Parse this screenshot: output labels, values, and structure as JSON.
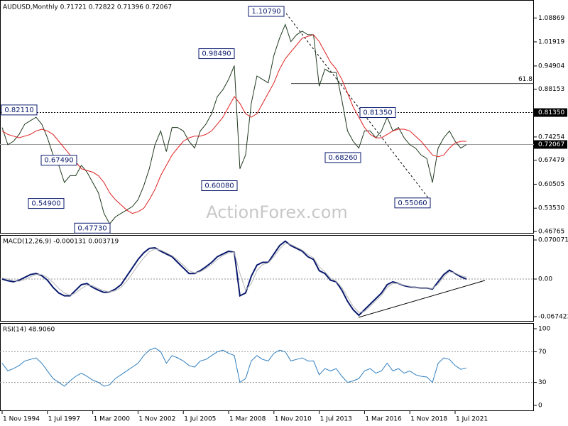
{
  "chart_data": [
    {
      "type": "line",
      "title": "AUDUSD,Monthly  0.71721 0.72822 0.71396 0.72067",
      "watermark": "ActionForex.com",
      "ylim": [
        0.46347,
        1.1389
      ],
      "yticks": [
        1.08869,
        1.01919,
        0.94904,
        0.88153,
        0.74254,
        0.67479,
        0.60505,
        {
          "value": 0.5353,
          "label": "0.53530"
        },
        0.46765
      ],
      "series": [
        {
          "color": "#1f3a1f",
          "values": [
            0.77,
            0.72,
            0.73,
            0.75,
            0.78,
            0.79,
            0.8,
            0.78,
            0.74,
            0.69,
            0.66,
            0.61,
            0.63,
            0.63,
            0.66,
            0.64,
            0.61,
            0.58,
            0.52,
            0.49,
            0.51,
            0.52,
            0.53,
            0.54,
            0.56,
            0.6,
            0.65,
            0.72,
            0.76,
            0.7,
            0.77,
            0.77,
            0.76,
            0.73,
            0.71,
            0.76,
            0.78,
            0.81,
            0.86,
            0.88,
            0.91,
            0.95,
            0.65,
            0.69,
            0.84,
            0.92,
            0.91,
            0.9,
            0.98,
            1.03,
            1.07,
            1.02,
            1.04,
            1.05,
            1.04,
            1.04,
            0.89,
            0.94,
            0.93,
            0.93,
            0.85,
            0.76,
            0.73,
            0.71,
            0.76,
            0.76,
            0.74,
            0.76,
            0.8,
            0.76,
            0.77,
            0.74,
            0.72,
            0.71,
            0.69,
            0.68,
            0.61,
            0.71,
            0.74,
            0.76,
            0.73,
            0.71,
            0.72
          ]
        },
        {
          "color": "#e02020",
          "values": [
            0.76,
            0.75,
            0.745,
            0.74,
            0.745,
            0.75,
            0.76,
            0.765,
            0.76,
            0.75,
            0.73,
            0.71,
            0.69,
            0.67,
            0.65,
            0.645,
            0.64,
            0.63,
            0.61,
            0.58,
            0.56,
            0.545,
            0.53,
            0.52,
            0.525,
            0.535,
            0.56,
            0.59,
            0.63,
            0.66,
            0.69,
            0.71,
            0.73,
            0.74,
            0.745,
            0.745,
            0.75,
            0.76,
            0.78,
            0.8,
            0.83,
            0.86,
            0.84,
            0.81,
            0.8,
            0.81,
            0.84,
            0.87,
            0.9,
            0.94,
            0.97,
            0.99,
            1.01,
            1.03,
            1.035,
            1.04,
            1.02,
            0.99,
            0.96,
            0.94,
            0.91,
            0.87,
            0.83,
            0.8,
            0.77,
            0.75,
            0.74,
            0.74,
            0.75,
            0.76,
            0.765,
            0.765,
            0.76,
            0.745,
            0.73,
            0.71,
            0.69,
            0.685,
            0.69,
            0.71,
            0.725,
            0.73,
            0.73
          ]
        }
      ],
      "levels": [
        {
          "value": 0.8135,
          "label": "0.81350"
        },
        {
          "value": 0.72067,
          "label": "0.72067"
        },
        {
          "value": 0.898,
          "label": "61.8"
        }
      ],
      "annotations": [
        {
          "value": 1.1079,
          "label": "1.10790"
        },
        {
          "value": 0.9849,
          "label": "0.98490"
        },
        {
          "value": 0.8211,
          "label": "0.82110"
        },
        {
          "value": 0.8135,
          "label": "0.81350"
        },
        {
          "value": 0.6826,
          "label": "0.68260"
        },
        {
          "value": 0.6749,
          "label": "0.67490"
        },
        {
          "value": 0.6008,
          "label": "0.60080"
        },
        {
          "value": 0.549,
          "label": "0.54900"
        },
        {
          "value": 0.4773,
          "label": "0.47730"
        },
        {
          "value": 0.5506,
          "label": "0.55060"
        }
      ]
    },
    {
      "type": "line",
      "title": "MACD(12,26,9) -0.000131 0.003719",
      "ylim": [
        -0.0751,
        0.0777
      ],
      "yticks": [
        0.070071,
        {
          "value": 0,
          "label": "0.00"
        },
        -0.067423
      ],
      "levels": [
        0
      ],
      "series": [
        {
          "color": "#0a1a6e",
          "values": [
            0,
            -0.003,
            -0.005,
            -0.002,
            0.003,
            0.008,
            0.01,
            0.006,
            -0.002,
            -0.015,
            -0.025,
            -0.03,
            -0.03,
            -0.02,
            -0.01,
            -0.008,
            -0.015,
            -0.02,
            -0.024,
            -0.023,
            -0.018,
            -0.01,
            0.005,
            0.02,
            0.035,
            0.047,
            0.055,
            0.056,
            0.05,
            0.045,
            0.04,
            0.03,
            0.02,
            0.01,
            0.01,
            0.015,
            0.022,
            0.03,
            0.04,
            0.045,
            0.05,
            0.048,
            -0.03,
            -0.025,
            0.005,
            0.025,
            0.03,
            0.03,
            0.045,
            0.06,
            0.068,
            0.06,
            0.055,
            0.05,
            0.04,
            0.035,
            0.015,
            0.01,
            -0.002,
            -0.005,
            -0.02,
            -0.04,
            -0.055,
            -0.065,
            -0.055,
            -0.045,
            -0.035,
            -0.025,
            -0.01,
            -0.005,
            -0.008,
            -0.012,
            -0.014,
            -0.015,
            -0.016,
            -0.016,
            -0.018,
            -0.005,
            0.008,
            0.016,
            0.01,
            0.004,
            -0.000131
          ]
        },
        {
          "color": "#b8b8b8",
          "values": [
            0.002,
            0,
            -0.003,
            -0.004,
            -0.001,
            0.004,
            0.008,
            0.008,
            0.003,
            -0.006,
            -0.017,
            -0.025,
            -0.029,
            -0.025,
            -0.017,
            -0.011,
            -0.012,
            -0.017,
            -0.021,
            -0.023,
            -0.021,
            -0.015,
            -0.004,
            0.01,
            0.025,
            0.038,
            0.049,
            0.054,
            0.052,
            0.047,
            0.042,
            0.034,
            0.025,
            0.015,
            0.011,
            0.013,
            0.019,
            0.026,
            0.035,
            0.042,
            0.047,
            0.048,
            0.01,
            -0.02,
            -0.008,
            0.015,
            0.026,
            0.029,
            0.04,
            0.054,
            0.064,
            0.062,
            0.057,
            0.052,
            0.044,
            0.038,
            0.022,
            0.013,
            0.002,
            -0.004,
            -0.015,
            -0.032,
            -0.049,
            -0.06,
            -0.058,
            -0.049,
            -0.039,
            -0.029,
            -0.015,
            -0.008,
            -0.008,
            -0.011,
            -0.013,
            -0.015,
            -0.016,
            -0.016,
            -0.017,
            -0.009,
            0.004,
            0.013,
            0.011,
            0.006,
            0.003719
          ]
        }
      ]
    },
    {
      "type": "line",
      "title": "RSI(14) 48.9060",
      "ylim": [
        -6.5,
        106.5
      ],
      "yticks": [
        100,
        70,
        30,
        0
      ],
      "levels": [
        30,
        70
      ],
      "categories": [
        "1 Nov 1994",
        null,
        null,
        null,
        null,
        null,
        null,
        null,
        "1 Jul 1997",
        null,
        null,
        null,
        null,
        null,
        null,
        null,
        "1 Mar 2000",
        null,
        null,
        null,
        null,
        null,
        null,
        null,
        "1 Nov 2002",
        null,
        null,
        null,
        null,
        null,
        null,
        null,
        "1 Jul 2005",
        null,
        null,
        null,
        null,
        null,
        null,
        null,
        "1 Mar 2008",
        null,
        null,
        null,
        null,
        null,
        null,
        null,
        "1 Nov 2010",
        null,
        null,
        null,
        null,
        null,
        null,
        null,
        "1 Jul 2013",
        null,
        null,
        null,
        null,
        null,
        null,
        null,
        "1 Mar 2016",
        null,
        null,
        null,
        null,
        null,
        null,
        null,
        "1 Nov 2018",
        null,
        null,
        null,
        null,
        null,
        null,
        null,
        "1 Jul 2021",
        null,
        null
      ],
      "series": [
        {
          "color": "#2f7fc0",
          "values": [
            55,
            45,
            48,
            52,
            58,
            60,
            62,
            55,
            45,
            35,
            30,
            25,
            32,
            38,
            42,
            38,
            33,
            30,
            25,
            27,
            35,
            40,
            45,
            50,
            55,
            65,
            72,
            75,
            70,
            55,
            65,
            62,
            58,
            52,
            50,
            58,
            60,
            65,
            70,
            72,
            68,
            65,
            30,
            35,
            58,
            65,
            60,
            58,
            68,
            72,
            70,
            58,
            60,
            62,
            58,
            58,
            40,
            48,
            45,
            48,
            38,
            30,
            32,
            35,
            45,
            48,
            42,
            45,
            55,
            45,
            48,
            42,
            45,
            40,
            38,
            37,
            30,
            55,
            62,
            60,
            52,
            47,
            48.906
          ]
        }
      ]
    }
  ]
}
